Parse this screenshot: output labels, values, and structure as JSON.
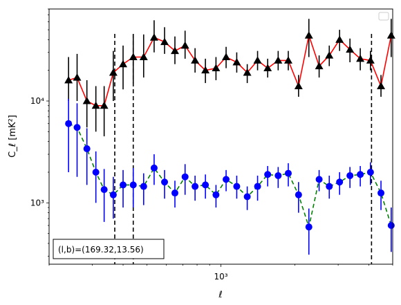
{
  "chart_data": {
    "type": "line",
    "xscale": "log",
    "yscale": "log",
    "xlabel": "ℓ",
    "ylabel": "C_ℓ [mK²]",
    "xlim": [
      200,
      5000
    ],
    "ylim": [
      250,
      80000
    ],
    "x_ticks": [
      {
        "value": 1000,
        "label": "10³"
      }
    ],
    "y_ticks": [
      {
        "value": 1000,
        "label": "10³"
      },
      {
        "value": 10000,
        "label": "10⁴"
      }
    ],
    "vlines": [
      370,
      440,
      4100
    ],
    "annotation": "(l,b)=(169.32,13.56)",
    "legend": {
      "position": "top-right",
      "entries": []
    },
    "series": [
      {
        "color": "#ff0000",
        "linestyle": "solid",
        "marker": "triangle",
        "marker_color": "#000000",
        "errorbar_color": "#000000",
        "x": [
          240,
          260,
          285,
          310,
          335,
          365,
          400,
          440,
          485,
          535,
          590,
          650,
          715,
          785,
          865,
          955,
          1050,
          1160,
          1280,
          1410,
          1550,
          1710,
          1880,
          2070,
          2280,
          2510,
          2760,
          3040,
          3350,
          3690,
          4060,
          4480,
          4930
        ],
        "y": [
          16000,
          17000,
          10000,
          9000,
          9000,
          19000,
          23000,
          27000,
          27000,
          42000,
          38000,
          31000,
          35000,
          25000,
          20000,
          21000,
          27000,
          24000,
          19000,
          25000,
          21000,
          25000,
          25000,
          14000,
          44000,
          22000,
          28000,
          40000,
          32000,
          26000,
          25000,
          14000,
          44000
        ],
        "yerr_low": [
          6000,
          7000,
          4500,
          4000,
          4500,
          9000,
          10000,
          12000,
          10000,
          12000,
          9000,
          8000,
          9000,
          6000,
          5000,
          5000,
          6000,
          5000,
          4000,
          5000,
          4000,
          5000,
          5000,
          3000,
          17000,
          5000,
          6000,
          9000,
          8000,
          6000,
          5000,
          3000,
          17000
        ],
        "yerr_high": [
          11000,
          12000,
          6000,
          5000,
          5000,
          12000,
          12000,
          18000,
          18000,
          20000,
          15000,
          12000,
          14000,
          8000,
          6000,
          6000,
          7000,
          6000,
          4000,
          6000,
          5000,
          6000,
          6000,
          4000,
          20000,
          6000,
          7000,
          10000,
          9000,
          7000,
          6000,
          4000,
          20000
        ]
      },
      {
        "color": "#008000",
        "linestyle": "dashed",
        "marker": "circle",
        "marker_color": "#0000ff",
        "errorbar_color": "#0000ff",
        "x": [
          240,
          260,
          285,
          310,
          335,
          365,
          400,
          440,
          485,
          535,
          590,
          650,
          715,
          785,
          865,
          955,
          1050,
          1160,
          1280,
          1410,
          1550,
          1710,
          1880,
          2070,
          2280,
          2510,
          2760,
          3040,
          3350,
          3690,
          4060,
          4480,
          4930
        ],
        "y": [
          6000,
          5500,
          3400,
          2000,
          1350,
          1200,
          1500,
          1500,
          1450,
          2200,
          1600,
          1250,
          1800,
          1450,
          1500,
          1200,
          1700,
          1450,
          1150,
          1450,
          1900,
          1850,
          1950,
          1200,
          580,
          1700,
          1450,
          1600,
          1850,
          1900,
          2000,
          1250,
          600
        ],
        "yerr_low": [
          4000,
          3700,
          1900,
          1000,
          700,
          500,
          600,
          600,
          500,
          700,
          500,
          350,
          600,
          400,
          400,
          300,
          400,
          350,
          300,
          400,
          450,
          450,
          500,
          400,
          270,
          400,
          350,
          400,
          450,
          450,
          500,
          400,
          270
        ],
        "yerr_high": [
          4500,
          4000,
          2000,
          1200,
          800,
          600,
          600,
          700,
          500,
          800,
          500,
          400,
          600,
          400,
          400,
          300,
          400,
          400,
          300,
          400,
          400,
          400,
          500,
          400,
          300,
          400,
          400,
          400,
          400,
          400,
          500,
          400,
          300
        ]
      }
    ]
  }
}
